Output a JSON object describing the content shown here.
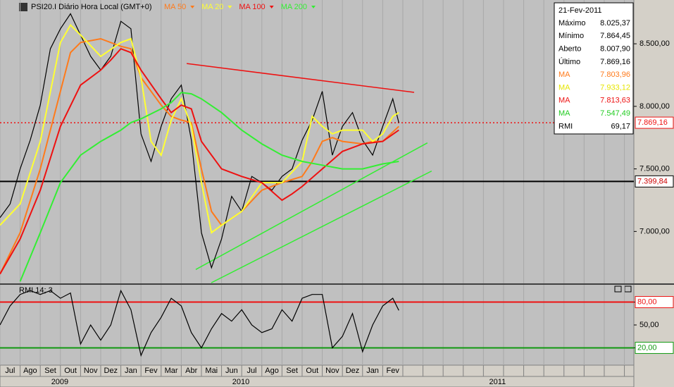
{
  "chart_data": [
    {
      "type": "line",
      "title": "PSI20.I Diário Hora Local (GMT+0)",
      "xlim": [
        0,
        31.47
      ],
      "xticks": [
        {
          "value": 0.5,
          "label": "Jul"
        },
        {
          "value": 1.5,
          "label": "Ago"
        },
        {
          "value": 2.5,
          "label": "Set"
        },
        {
          "value": 3.5,
          "label": "Out"
        },
        {
          "value": 4.5,
          "label": "Nov"
        },
        {
          "value": 5.5,
          "label": "Dez"
        },
        {
          "value": 6.5,
          "label": "Jan"
        },
        {
          "value": 7.5,
          "label": "Fev"
        },
        {
          "value": 8.5,
          "label": "Mar"
        },
        {
          "value": 9.5,
          "label": "Abr"
        },
        {
          "value": 10.5,
          "label": "Mai"
        },
        {
          "value": 11.5,
          "label": "Jun"
        },
        {
          "value": 12.5,
          "label": "Jul"
        },
        {
          "value": 13.5,
          "label": "Ago"
        },
        {
          "value": 14.5,
          "label": "Set"
        },
        {
          "value": 15.5,
          "label": "Out"
        },
        {
          "value": 16.5,
          "label": "Nov"
        },
        {
          "value": 17.5,
          "label": "Dez"
        },
        {
          "value": 18.5,
          "label": "Jan"
        },
        {
          "value": 19.5,
          "label": "Fev"
        }
      ],
      "years": [
        {
          "value": 2.97,
          "label": "2009"
        },
        {
          "value": 11.96,
          "label": "2010"
        },
        {
          "value": 24.7,
          "label": "2011"
        }
      ],
      "ylim": [
        6585,
        8850
      ],
      "yticks": [
        {
          "value": 7000,
          "label": "7.000,00"
        },
        {
          "value": 7500,
          "label": "7.500,00"
        },
        {
          "value": 8000,
          "label": "8.000,00"
        },
        {
          "value": 8500,
          "label": "8.500,00"
        }
      ],
      "series": [
        {
          "color": "#000000",
          "x": [
            0,
            0.5,
            1,
            1.5,
            2,
            2.5,
            3,
            3.5,
            4,
            4.5,
            5,
            5.5,
            6,
            6.5,
            7,
            7.5,
            8,
            8.5,
            9,
            9.5,
            10,
            10.5,
            11,
            11.5,
            12,
            12.5,
            13,
            13.5,
            14,
            14.5,
            15,
            15.5,
            16,
            16.5,
            17,
            17.5,
            18,
            18.5,
            19,
            19.5,
            19.8
          ],
          "values": [
            7110,
            7220,
            7500,
            7730,
            8010,
            8460,
            8620,
            8740,
            8570,
            8400,
            8290,
            8400,
            8680,
            8620,
            7780,
            7560,
            7840,
            8060,
            8170,
            7730,
            6990,
            6710,
            6940,
            7280,
            7160,
            7440,
            7390,
            7330,
            7440,
            7500,
            7730,
            7890,
            8120,
            7610,
            7840,
            7950,
            7730,
            7610,
            7840,
            8060,
            7869
          ]
        },
        {
          "name": "MA 50",
          "color": "#ff7a1a",
          "x": [
            0,
            1,
            2,
            3,
            3.5,
            4,
            5,
            6,
            6.5,
            7,
            8,
            8.5,
            9,
            9.5,
            10,
            10.5,
            11,
            12,
            13,
            14,
            15,
            15.5,
            16,
            16.5,
            17,
            18,
            18.5,
            19,
            19.8
          ],
          "values": [
            6660,
            6990,
            7500,
            8120,
            8430,
            8510,
            8540,
            8480,
            8460,
            8230,
            8010,
            7920,
            7890,
            7870,
            7500,
            7160,
            7050,
            7160,
            7330,
            7390,
            7440,
            7560,
            7720,
            7750,
            7720,
            7700,
            7720,
            7720,
            7840
          ]
        },
        {
          "name": "MA 20",
          "color": "#ffff33",
          "x": [
            0,
            1,
            2,
            3,
            3.5,
            4,
            5,
            6,
            6.5,
            7,
            7.5,
            8,
            8.5,
            9,
            9.5,
            10,
            10.5,
            11,
            12,
            13,
            14,
            15,
            15.5,
            16,
            16.5,
            17,
            18,
            18.5,
            19,
            19.5,
            19.8
          ],
          "values": [
            7050,
            7220,
            7720,
            8510,
            8650,
            8570,
            8400,
            8510,
            8540,
            8230,
            7720,
            7610,
            7890,
            8060,
            7840,
            7390,
            6990,
            7050,
            7160,
            7390,
            7390,
            7560,
            7920,
            7840,
            7780,
            7810,
            7810,
            7720,
            7780,
            7920,
            7950
          ]
        },
        {
          "name": "MA 100",
          "color": "#ee1111",
          "x": [
            0,
            1,
            2,
            3,
            4,
            5,
            5.5,
            6,
            6.5,
            7,
            8,
            8.5,
            9,
            9.5,
            10,
            11,
            12,
            13,
            14,
            14.5,
            15,
            16,
            17,
            18,
            19,
            19.8
          ],
          "values": [
            6660,
            6940,
            7330,
            7840,
            8170,
            8290,
            8370,
            8460,
            8430,
            8290,
            8060,
            7950,
            8010,
            7980,
            7720,
            7500,
            7440,
            7390,
            7250,
            7300,
            7360,
            7500,
            7640,
            7700,
            7720,
            7810
          ]
        },
        {
          "name": "MA 200",
          "color": "#33ee33",
          "x": [
            1,
            2,
            3,
            4,
            5,
            6,
            6.5,
            7,
            8,
            8.5,
            9,
            9.5,
            10,
            11,
            12,
            13,
            14,
            15,
            16,
            17,
            18,
            19,
            19.8
          ],
          "values": [
            6600,
            6990,
            7390,
            7610,
            7720,
            7810,
            7870,
            7900,
            7980,
            8030,
            8110,
            8100,
            8060,
            7950,
            7810,
            7700,
            7610,
            7560,
            7530,
            7500,
            7500,
            7540,
            7560
          ]
        }
      ],
      "hlines": [
        {
          "value": 7869.16,
          "label": "7.869,16",
          "color": "#ee1111",
          "style": "dotted"
        },
        {
          "value": 7399.84,
          "label": "7.399,84",
          "color": "#000000",
          "style": "solid"
        }
      ],
      "trendlines": [
        {
          "color": "#ee1111",
          "x": [
            9.27,
            20.56
          ],
          "values": [
            8342,
            8112
          ]
        },
        {
          "color": "#33ee33",
          "x": [
            9.72,
            21.22
          ],
          "values": [
            6696,
            7708
          ]
        },
        {
          "color": "#33ee33",
          "x": [
            10.49,
            21.43
          ],
          "values": [
            6590,
            7483
          ]
        }
      ]
    },
    {
      "type": "line",
      "title": "RMI 14; 3",
      "xlim": [
        0,
        31.47
      ],
      "ylim": [
        -2.7,
        102.7
      ],
      "yticks": [
        {
          "value": 20,
          "label": "20,00"
        },
        {
          "value": 50,
          "label": "50,00"
        },
        {
          "value": 80,
          "label": "80,00"
        }
      ],
      "series": [
        {
          "color": "#000000",
          "x": [
            0,
            0.5,
            1,
            1.5,
            2,
            2.5,
            3,
            3.5,
            4,
            4.5,
            5,
            5.5,
            6,
            6.5,
            7,
            7.5,
            8,
            8.5,
            9,
            9.5,
            10,
            10.5,
            11,
            11.5,
            12,
            12.5,
            13,
            13.5,
            14,
            14.5,
            15,
            15.5,
            16,
            16.5,
            17,
            17.5,
            18,
            18.5,
            19,
            19.5,
            19.8
          ],
          "values": [
            50,
            75,
            90,
            95,
            90,
            95,
            85,
            92,
            25,
            50,
            30,
            50,
            95,
            70,
            10,
            40,
            60,
            85,
            75,
            40,
            20,
            45,
            65,
            55,
            70,
            50,
            40,
            45,
            70,
            55,
            85,
            90,
            90,
            20,
            35,
            65,
            15,
            50,
            75,
            85,
            69.17
          ]
        }
      ],
      "hlines": [
        {
          "value": 80,
          "label": "80,00",
          "color": "#ee1111",
          "style": "solid"
        },
        {
          "value": 20,
          "label": "20,00",
          "color": "#119911",
          "style": "solid"
        }
      ]
    }
  ],
  "info": {
    "date": "21-Fev-2011",
    "rows": [
      {
        "label": "Máximo",
        "value": "8.025,37",
        "color": "#000000"
      },
      {
        "label": "Mínimo",
        "value": "7.864,45",
        "color": "#000000"
      },
      {
        "label": "Aberto",
        "value": "8.007,90",
        "color": "#000000"
      },
      {
        "label": "Último",
        "value": "7.869,16",
        "color": "#000000"
      },
      {
        "label": "MA",
        "value": "7.803,96",
        "color": "#ff7a1a"
      },
      {
        "label": "MA",
        "value": "7.933,12",
        "color": "#e6e600"
      },
      {
        "label": "MA",
        "value": "7.813,63",
        "color": "#ee1111"
      },
      {
        "label": "MA",
        "value": "7.547,49",
        "color": "#22cc22"
      },
      {
        "label": "RMI",
        "value": "69,17",
        "color": "#000000"
      }
    ]
  }
}
